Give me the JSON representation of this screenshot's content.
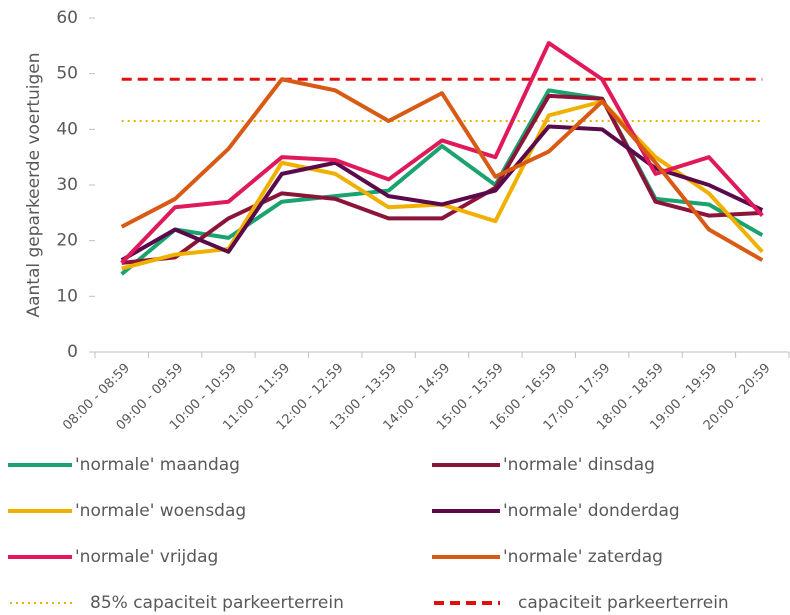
{
  "chart_data": {
    "type": "line",
    "y_label": "Aantal geparkeerde voertuigen",
    "categories": [
      "08:00 - 08:59",
      "09:00 - 09:59",
      "10:00 - 10:59",
      "11:00 - 11:59",
      "12:00 - 12:59",
      "13:00 - 13:59",
      "14:00 - 14:59",
      "15:00 - 15:59",
      "16:00 - 16:59",
      "17:00 - 17:59",
      "18:00 - 18:59",
      "19:00 - 19:59",
      "20:00 - 20:59"
    ],
    "series": [
      {
        "name": "'normale' maandag",
        "color": "#1aa36f",
        "values": [
          14,
          22,
          20.5,
          27,
          28,
          29,
          37,
          30,
          47,
          45.5,
          27.5,
          26.5,
          21
        ]
      },
      {
        "name": "'normale' dinsdag",
        "color": "#8b1538",
        "values": [
          16,
          17,
          24,
          28.5,
          27.5,
          24,
          24,
          29.5,
          46,
          45.5,
          27,
          24.5,
          25
        ]
      },
      {
        "name": "'normale' woensdag",
        "color": "#f0b000",
        "values": [
          15,
          17.5,
          18.5,
          34,
          32,
          26,
          26.5,
          23.5,
          42.5,
          45,
          35,
          28.5,
          18
        ]
      },
      {
        "name": "'normale' donderdag",
        "color": "#5a0a4a",
        "values": [
          16.5,
          22,
          18,
          32,
          34,
          28,
          26.5,
          29,
          40.5,
          40,
          33,
          30,
          25.5
        ]
      },
      {
        "name": "'normale' vrijdag",
        "color": "#e0195a",
        "values": [
          16,
          26,
          27,
          35,
          34.5,
          31,
          38,
          35,
          55.5,
          49,
          32,
          35,
          24.5
        ]
      },
      {
        "name": "'normale' zaterdag",
        "color": "#d85a14",
        "values": [
          22.5,
          27.5,
          36.5,
          49,
          47,
          41.5,
          46.5,
          31.5,
          36,
          45,
          34,
          22,
          16.5
        ]
      }
    ],
    "reference_lines": [
      {
        "name": "85% capaciteit parkeerterrein",
        "value": 41.5,
        "color": "#f0b000",
        "style": "dotted"
      },
      {
        "name": "capaciteit parkeerterrein",
        "value": 49,
        "color": "#e01010",
        "style": "dashed"
      }
    ],
    "ylim": [
      0,
      60
    ],
    "yticks": [
      0,
      10,
      20,
      30,
      40,
      50,
      60
    ],
    "grid": false
  }
}
